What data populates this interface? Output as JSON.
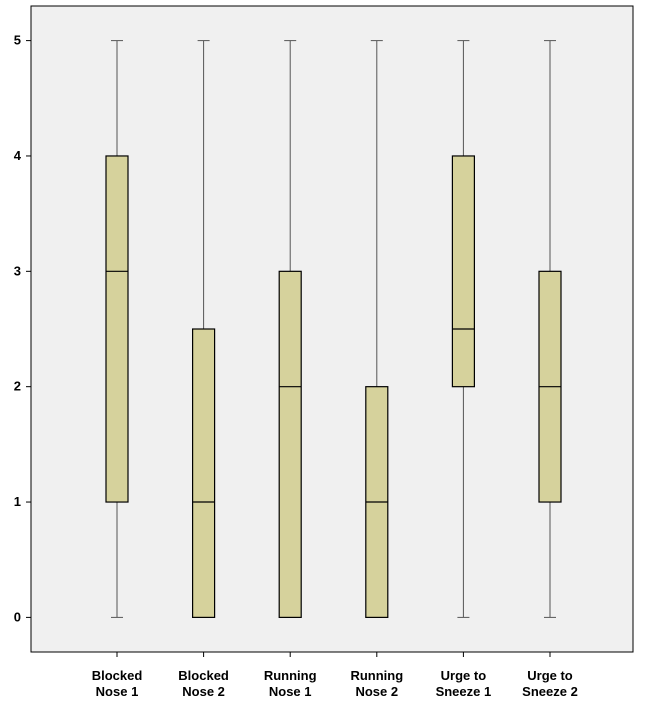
{
  "chart_data": {
    "type": "boxplot",
    "title": "",
    "xlabel": "",
    "ylabel": "",
    "ylim": [
      -0.3,
      5.3
    ],
    "yticks": [
      0,
      1,
      2,
      3,
      4,
      5
    ],
    "ytick_labels": [
      "0",
      "1",
      "2",
      "3",
      "4",
      "5"
    ],
    "grid": false,
    "legend": "none",
    "categories": [
      {
        "line1": "Blocked",
        "line2": "Nose 1"
      },
      {
        "line1": "Blocked",
        "line2": "Nose 2"
      },
      {
        "line1": "Running",
        "line2": "Nose 1"
      },
      {
        "line1": "Running",
        "line2": "Nose 2"
      },
      {
        "line1": "Urge to",
        "line2": "Sneeze 1"
      },
      {
        "line1": "Urge to",
        "line2": "Sneeze 2"
      }
    ],
    "boxes": [
      {
        "min": 0,
        "q1": 1,
        "median": 3,
        "q3": 4,
        "max": 5
      },
      {
        "min": 0,
        "q1": 0,
        "median": 1,
        "q3": 2.5,
        "max": 5
      },
      {
        "min": 0,
        "q1": 0,
        "median": 2,
        "q3": 3,
        "max": 5
      },
      {
        "min": 0,
        "q1": 0,
        "median": 1,
        "q3": 2,
        "max": 5
      },
      {
        "min": 0,
        "q1": 2,
        "median": 2.5,
        "q3": 4,
        "max": 5
      },
      {
        "min": 0,
        "q1": 1,
        "median": 2,
        "q3": 3,
        "max": 5
      }
    ],
    "colors": {
      "plot_background": "#f0f0f0",
      "box_fill": "#d6d29c",
      "line": "#000000",
      "whisker": "#555555"
    }
  }
}
